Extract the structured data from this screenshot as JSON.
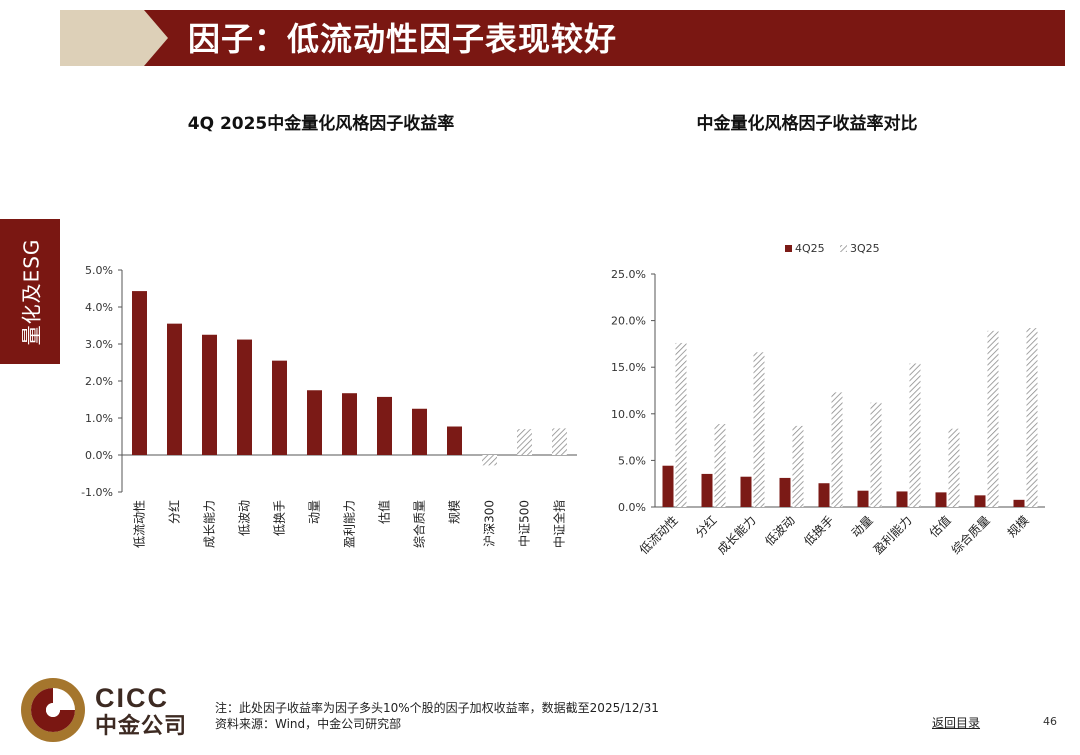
{
  "header": {
    "title": "因子：低流动性因子表现较好"
  },
  "side_tab": {
    "label": "量化及ESG"
  },
  "colors": {
    "brand_dark_red": "#7a1712",
    "bar_4q": "#7b1a16",
    "hatch": "#8c8c8c",
    "title_gold": "#ddd0b8"
  },
  "chart_data": [
    {
      "id": "chart1",
      "type": "bar",
      "title": "4Q 2025中金量化风格因子收益率",
      "categories": [
        "低流动性",
        "分红",
        "成长能力",
        "低波动",
        "低换手",
        "动量",
        "盈利能力",
        "估值",
        "综合质量",
        "规模",
        "沪深300",
        "中证500",
        "中证全指"
      ],
      "values": [
        4.43,
        3.55,
        3.25,
        3.12,
        2.55,
        1.75,
        1.67,
        1.57,
        1.25,
        0.77,
        -0.28,
        0.7,
        0.72
      ],
      "hatched": [
        false,
        false,
        false,
        false,
        false,
        false,
        false,
        false,
        false,
        false,
        true,
        true,
        true
      ],
      "ylim": [
        -1.0,
        5.0
      ],
      "yticks": [
        -1.0,
        0.0,
        1.0,
        2.0,
        3.0,
        4.0,
        5.0
      ],
      "ytick_labels": [
        "-1.0%",
        "0.0%",
        "1.0%",
        "2.0%",
        "3.0%",
        "4.0%",
        "5.0%"
      ],
      "xlabel": "",
      "ylabel": "",
      "grid": false
    },
    {
      "id": "chart2",
      "type": "bar",
      "title": "中金量化风格因子收益率对比",
      "categories": [
        "低流动性",
        "分红",
        "成长能力",
        "低波动",
        "低换手",
        "动量",
        "盈利能力",
        "估值",
        "综合质量",
        "规模"
      ],
      "series": [
        {
          "name": "4Q25",
          "values": [
            4.43,
            3.55,
            3.25,
            3.12,
            2.55,
            1.75,
            1.67,
            1.57,
            1.25,
            0.77
          ],
          "style": "solid"
        },
        {
          "name": "3Q25",
          "values": [
            17.6,
            8.9,
            16.6,
            8.7,
            12.3,
            11.2,
            15.4,
            8.4,
            18.9,
            19.2
          ],
          "style": "hatch"
        }
      ],
      "ylim": [
        0,
        25.0
      ],
      "yticks": [
        0,
        5.0,
        10.0,
        15.0,
        20.0,
        25.0
      ],
      "ytick_labels": [
        "0.0%",
        "5.0%",
        "10.0%",
        "15.0%",
        "20.0%",
        "25.0%"
      ],
      "legend_position": "top-left",
      "xlabel": "",
      "ylabel": "",
      "grid": false
    }
  ],
  "footer": {
    "logo_en": "CICC",
    "logo_cn": "中金公司",
    "note": "注：此处因子收益率为因子多头10%个股的因子加权收益率，数据截至2025/12/31",
    "source": "资料来源：Wind，中金公司研究部",
    "back_link": "返回目录",
    "page_number": "46"
  }
}
